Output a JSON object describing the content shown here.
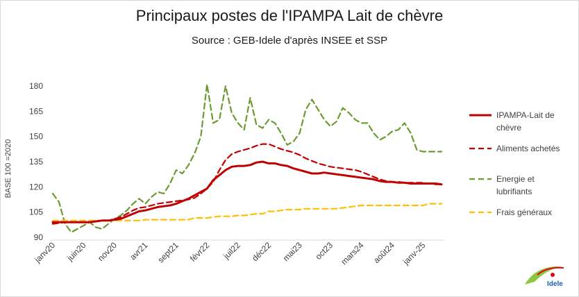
{
  "title": "Principaux postes de l'IPAMPA Lait de chèvre",
  "subtitle": "Source : GEB-Idele d'après INSEE et SSP",
  "logo_text": "Idele",
  "chart_data": {
    "type": "line",
    "ylabel": "BASE 100 =2020",
    "ylim": [
      90,
      180
    ],
    "yticks": [
      90,
      105,
      120,
      135,
      150,
      165,
      180
    ],
    "x_count": 64,
    "x_ticks": [
      {
        "label": "janv20",
        "index": 0
      },
      {
        "label": "juin20",
        "index": 5
      },
      {
        "label": "nov20",
        "index": 10
      },
      {
        "label": "avr21",
        "index": 15
      },
      {
        "label": "sept21",
        "index": 20
      },
      {
        "label": "févr22",
        "index": 25
      },
      {
        "label": "juil22",
        "index": 30
      },
      {
        "label": "déc22",
        "index": 35
      },
      {
        "label": "mai23",
        "index": 40
      },
      {
        "label": "oct23",
        "index": 45
      },
      {
        "label": "mars24",
        "index": 50
      },
      {
        "label": "août24",
        "index": 55
      },
      {
        "label": "janv-25",
        "index": 60
      }
    ],
    "series": [
      {
        "name": "IPAMPA-Lait de chèvre",
        "legend_lines": [
          "IPAMPA-Lait de",
          "chèvre"
        ],
        "color": "#c00000",
        "dash": "solid",
        "width": 3,
        "values": [
          99,
          99,
          99,
          99,
          99,
          99,
          99,
          99.5,
          100,
          100,
          100.5,
          101,
          102.5,
          104,
          105.5,
          106,
          107,
          108,
          108.5,
          109,
          110,
          111.5,
          113,
          115,
          117,
          119,
          124,
          127,
          130,
          132,
          132.5,
          132.5,
          133,
          134.5,
          135,
          134,
          134,
          133,
          132.5,
          131,
          130,
          129,
          128,
          128,
          128.5,
          128,
          127.5,
          127,
          126.5,
          126,
          125.5,
          125,
          124.5,
          123.5,
          123,
          123,
          122.5,
          122.5,
          122,
          122,
          122,
          122,
          122,
          121.5
        ]
      },
      {
        "name": "Aliments achetés",
        "legend_lines": [
          "Aliments achetés"
        ],
        "color": "#c00000",
        "dash": "8,5",
        "width": 2.2,
        "values": [
          98,
          98.5,
          99,
          99,
          99,
          99,
          99,
          99.5,
          100,
          100,
          101,
          102,
          104,
          106,
          107.5,
          108,
          109,
          110,
          110.5,
          111,
          111.5,
          112,
          112.5,
          113.5,
          116,
          119,
          123,
          130,
          136,
          139.5,
          141,
          142,
          143,
          144.5,
          145.5,
          145.5,
          144,
          142.5,
          141.5,
          140.5,
          139,
          137,
          135.5,
          134,
          133,
          132,
          131.5,
          131,
          130.5,
          130,
          129,
          127.5,
          126,
          124.5,
          123.5,
          123,
          123,
          122.5,
          122.5,
          122.5,
          122.5,
          122,
          121.5,
          121.5
        ]
      },
      {
        "name": "Energie et lubrifiants",
        "legend_lines": [
          "Energie et",
          "lubrifiants"
        ],
        "color": "#6b9a2e",
        "dash": "8,5",
        "width": 2.2,
        "values": [
          116,
          111,
          98,
          93,
          95,
          97,
          99,
          96,
          95,
          98,
          101,
          103,
          106,
          110,
          113,
          110,
          114,
          117,
          116,
          122,
          130,
          128,
          133,
          140,
          150,
          181,
          158,
          160,
          180,
          164,
          158,
          154,
          173,
          157,
          155,
          160,
          158,
          152,
          145,
          147,
          152,
          166,
          172,
          166,
          160,
          156,
          159,
          167,
          164,
          160,
          158,
          158,
          152,
          148,
          150,
          153,
          154,
          158,
          152,
          142,
          141,
          141,
          141,
          141
        ]
      },
      {
        "name": "Frais généraux",
        "legend_lines": [
          "Frais généraux"
        ],
        "color": "#ffc000",
        "dash": "8,5",
        "width": 2.2,
        "values": [
          100,
          100,
          100,
          100,
          100,
          100,
          100,
          100,
          100,
          100,
          100,
          100,
          100,
          100,
          100,
          100.5,
          100.5,
          100.5,
          100.5,
          100.5,
          100.5,
          100.5,
          100.5,
          101.5,
          101.5,
          101.5,
          102,
          102.5,
          102.5,
          102.5,
          103,
          103,
          103.5,
          104,
          104,
          105.5,
          105.5,
          106,
          106.5,
          106.5,
          106.5,
          107,
          107,
          107,
          107,
          107,
          107,
          107.5,
          108,
          108.5,
          109,
          109,
          109,
          109,
          109,
          109,
          109,
          109,
          109,
          109,
          109,
          110,
          110,
          110
        ]
      }
    ]
  }
}
